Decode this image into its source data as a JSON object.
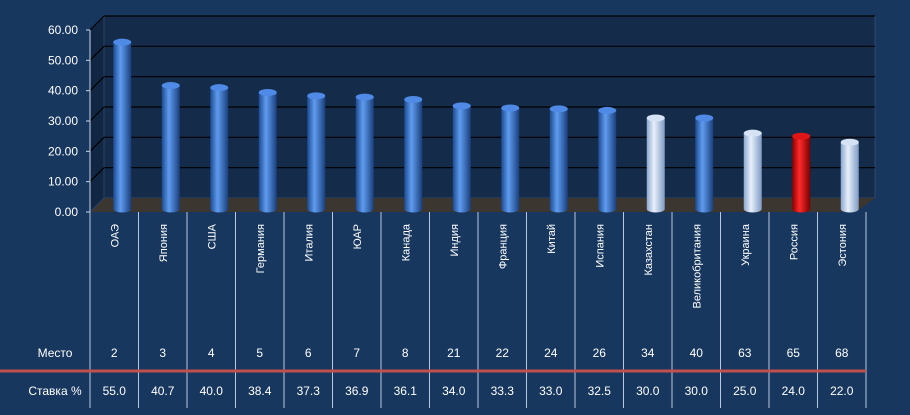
{
  "chart_data": {
    "type": "bar",
    "title": "",
    "xlabel": "",
    "ylabel": "",
    "ylim": [
      0,
      60
    ],
    "yticks": [
      "0.00",
      "10.00",
      "20.00",
      "30.00",
      "40.00",
      "50.00",
      "60.00"
    ],
    "grid": true,
    "legend": "none",
    "categories": [
      "ОАЭ",
      "Япония",
      "США",
      "Германия",
      "Италия",
      "ЮАР",
      "Канада",
      "Индия",
      "Франция",
      "Китай",
      "Испания",
      "Казахстан",
      "Великобритания",
      "Украина",
      "Россия",
      "Эстония"
    ],
    "series": [
      {
        "values": [
          55.0,
          40.7,
          40.0,
          38.4,
          37.3,
          36.9,
          36.1,
          34.0,
          33.3,
          33.0,
          32.5,
          30.0,
          30.0,
          25.0,
          24.0,
          22.0
        ]
      }
    ],
    "bar_colors": [
      "blue",
      "blue",
      "blue",
      "blue",
      "blue",
      "blue",
      "blue",
      "blue",
      "blue",
      "blue",
      "blue",
      "light",
      "blue",
      "light",
      "red",
      "light"
    ],
    "palette": {
      "blue": "#3a78d4",
      "light": "#b7cdea",
      "red": "#cc0000"
    }
  },
  "table": {
    "rows": [
      {
        "label": "Место",
        "values": [
          "2",
          "3",
          "4",
          "5",
          "6",
          "7",
          "8",
          "21",
          "22",
          "24",
          "26",
          "34",
          "40",
          "63",
          "65",
          "68"
        ]
      },
      {
        "label": "Ставка %",
        "values": [
          "55.0",
          "40.7",
          "40.0",
          "38.4",
          "37.3",
          "36.9",
          "36.1",
          "34.0",
          "33.3",
          "33.0",
          "32.5",
          "30.0",
          "30.0",
          "25.0",
          "24.0",
          "22.0"
        ]
      }
    ],
    "separator_color": "#c0504d"
  }
}
